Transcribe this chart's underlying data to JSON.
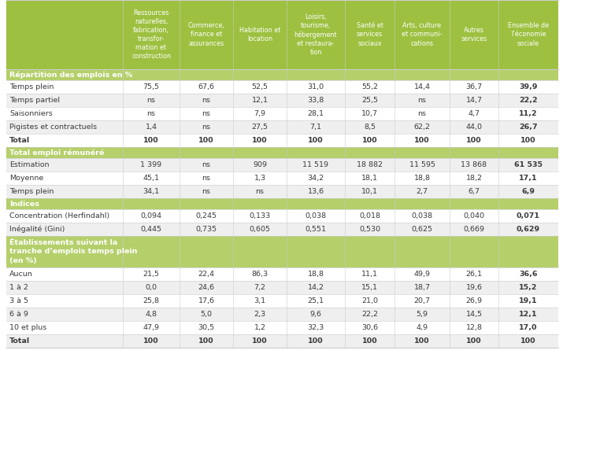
{
  "header_bg": "#9dc040",
  "section_bg": "#b5cf6b",
  "alt_row_bg": "#efefef",
  "white_row_bg": "#ffffff",
  "body_text": "#3a3a3a",
  "line_color": "#cccccc",
  "col_headers": [
    "Ressources\nnaturelles,\nfabrication,\ntransfor-\nmation et\nconstruction",
    "Commerce,\nfinance et\nassurances",
    "Habitation et\nlocation",
    "Loisirs,\ntourisme,\nhébergement\net restaura-\ntion",
    "Santé et\nservices\nsociaux",
    "Arts, culture\net communi-\ncations",
    "Autres\nservices",
    "Ensemble de\nl’économie\nsociale"
  ],
  "sections": [
    {
      "label": "Répartition des emplois en %",
      "label_lines": 1,
      "rows": [
        {
          "label": "Temps plein",
          "values": [
            "75,5",
            "67,6",
            "52,5",
            "31,0",
            "55,2",
            "14,4",
            "36,7",
            "39,9"
          ],
          "bold_last": true
        },
        {
          "label": "Temps partiel",
          "values": [
            "ns",
            "ns",
            "12,1",
            "33,8",
            "25,5",
            "ns",
            "14,7",
            "22,2"
          ],
          "bold_last": true
        },
        {
          "label": "Saisonniers",
          "values": [
            "ns",
            "ns",
            "7,9",
            "28,1",
            "10,7",
            "ns",
            "4,7",
            "11,2"
          ],
          "bold_last": true
        },
        {
          "label": "Pigistes et contractuels",
          "values": [
            "1,4",
            "ns",
            "27,5",
            "7,1",
            "8,5",
            "62,2",
            "44,0",
            "26,7"
          ],
          "bold_last": true
        },
        {
          "label": "Total",
          "values": [
            "100",
            "100",
            "100",
            "100",
            "100",
            "100",
            "100",
            "100"
          ],
          "bold_all": true
        }
      ]
    },
    {
      "label": "Total emploi rémunéré",
      "label_lines": 1,
      "rows": [
        {
          "label": "Estimation",
          "values": [
            "1 399",
            "ns",
            "909",
            "11 519",
            "18 882",
            "11 595",
            "13 868",
            "61 535"
          ],
          "bold_last": true
        },
        {
          "label": "Moyenne",
          "values": [
            "45,1",
            "ns",
            "1,3",
            "34,2",
            "18,1",
            "18,8",
            "18,2",
            "17,1"
          ],
          "bold_last": true
        },
        {
          "label": "Temps plein",
          "values": [
            "34,1",
            "ns",
            "ns",
            "13,6",
            "10,1",
            "2,7",
            "6,7",
            "6,9"
          ],
          "bold_last": true
        }
      ]
    },
    {
      "label": "Indices",
      "label_lines": 1,
      "rows": [
        {
          "label": "Concentration (Herfindahl)",
          "values": [
            "0,094",
            "0,245",
            "0,133",
            "0,038",
            "0,018",
            "0,038",
            "0,040",
            "0,071"
          ],
          "bold_last": true
        },
        {
          "label": "Inégalité (Gini)",
          "values": [
            "0,445",
            "0,735",
            "0,605",
            "0,551",
            "0,530",
            "0,625",
            "0,669",
            "0,629"
          ],
          "bold_last": true
        }
      ]
    },
    {
      "label": "Établissements suivant la\ntranche d’emplois temps plein\n(en %)",
      "label_lines": 3,
      "rows": [
        {
          "label": "Aucun",
          "values": [
            "21,5",
            "22,4",
            "86,3",
            "18,8",
            "11,1",
            "49,9",
            "26,1",
            "36,6"
          ],
          "bold_last": true
        },
        {
          "label": "1 à 2",
          "values": [
            "0,0",
            "24,6",
            "7,2",
            "14,2",
            "15,1",
            "18,7",
            "19,6",
            "15,2"
          ],
          "bold_last": true
        },
        {
          "label": "3 à 5",
          "values": [
            "25,8",
            "17,6",
            "3,1",
            "25,1",
            "21,0",
            "20,7",
            "26,9",
            "19,1"
          ],
          "bold_last": true
        },
        {
          "label": "6 à 9",
          "values": [
            "4,8",
            "5,0",
            "2,3",
            "9,6",
            "22,2",
            "5,9",
            "14,5",
            "12,1"
          ],
          "bold_last": true
        },
        {
          "label": "10 et plus",
          "values": [
            "47,9",
            "30,5",
            "1,2",
            "32,3",
            "30,6",
            "4,9",
            "12,8",
            "17,0"
          ],
          "bold_last": true
        },
        {
          "label": "Total",
          "values": [
            "100",
            "100",
            "100",
            "100",
            "100",
            "100",
            "100",
            "100"
          ],
          "bold_all": true
        }
      ]
    }
  ]
}
